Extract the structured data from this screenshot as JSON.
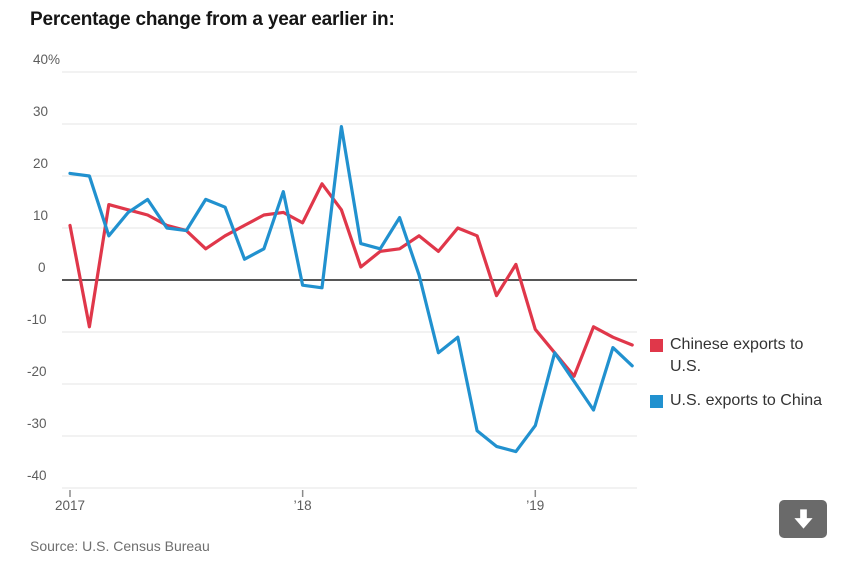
{
  "header": {
    "title": "Percentage change from a year earlier in:"
  },
  "chart_data": {
    "type": "line",
    "title": "Percentage change from a year earlier in:",
    "x": [
      "2017-01",
      "2017-02",
      "2017-03",
      "2017-04",
      "2017-05",
      "2017-06",
      "2017-07",
      "2017-08",
      "2017-09",
      "2017-10",
      "2017-11",
      "2017-12",
      "2018-01",
      "2018-02",
      "2018-03",
      "2018-04",
      "2018-05",
      "2018-06",
      "2018-07",
      "2018-08",
      "2018-09",
      "2018-10",
      "2018-11",
      "2018-12",
      "2019-01",
      "2019-02",
      "2019-03",
      "2019-04",
      "2019-05",
      "2019-06"
    ],
    "series": [
      {
        "name": "Chinese exports to U.S.",
        "color": "#e0374a",
        "values": [
          10.5,
          -9,
          14.5,
          13.5,
          12.5,
          10.5,
          9.5,
          6,
          8.5,
          10.5,
          12.5,
          13,
          11,
          18.5,
          13.5,
          2.5,
          5.5,
          6,
          8.5,
          5.5,
          10,
          8.5,
          -3,
          3,
          -9.5,
          -14,
          -18.5,
          -9,
          -11,
          -12.5
        ]
      },
      {
        "name": "U.S. exports to China",
        "color": "#2191cf",
        "values": [
          20.5,
          20,
          8.5,
          13,
          15.5,
          10,
          9.5,
          15.5,
          14,
          4,
          6,
          17,
          -1,
          -1.5,
          29.5,
          7,
          6,
          12,
          1,
          -14,
          -11,
          -29,
          -32,
          -33,
          -28,
          -14,
          -19.5,
          -25,
          -13,
          -16.5
        ]
      }
    ],
    "ylim": [
      -40,
      40
    ],
    "y_ticks": [
      {
        "value": 40,
        "label": "40%"
      },
      {
        "value": 30,
        "label": "30"
      },
      {
        "value": 20,
        "label": "20"
      },
      {
        "value": 10,
        "label": "10"
      },
      {
        "value": 0,
        "label": "0"
      },
      {
        "value": -10,
        "label": "-10"
      },
      {
        "value": -20,
        "label": "-20"
      },
      {
        "value": -30,
        "label": "-30"
      },
      {
        "value": -40,
        "label": "-40"
      }
    ],
    "x_ticks": [
      {
        "month_index": 0,
        "label": "2017"
      },
      {
        "month_index": 12,
        "label": "’18"
      },
      {
        "month_index": 24,
        "label": "’19"
      }
    ],
    "grid": "horizontal",
    "grid_color": "#e4e4e4",
    "zero_line_color": "#565656",
    "legend_position": "right"
  },
  "legend": {
    "items": [
      {
        "label": "Chinese exports to U.S.",
        "color": "#e0374a"
      },
      {
        "label": "U.S. exports to China",
        "color": "#2191cf"
      }
    ]
  },
  "footer": {
    "source": "Source: U.S. Census Bureau"
  },
  "controls": {
    "download_button": {
      "icon": "down-arrow-icon",
      "background": "#6a6a6a"
    }
  }
}
